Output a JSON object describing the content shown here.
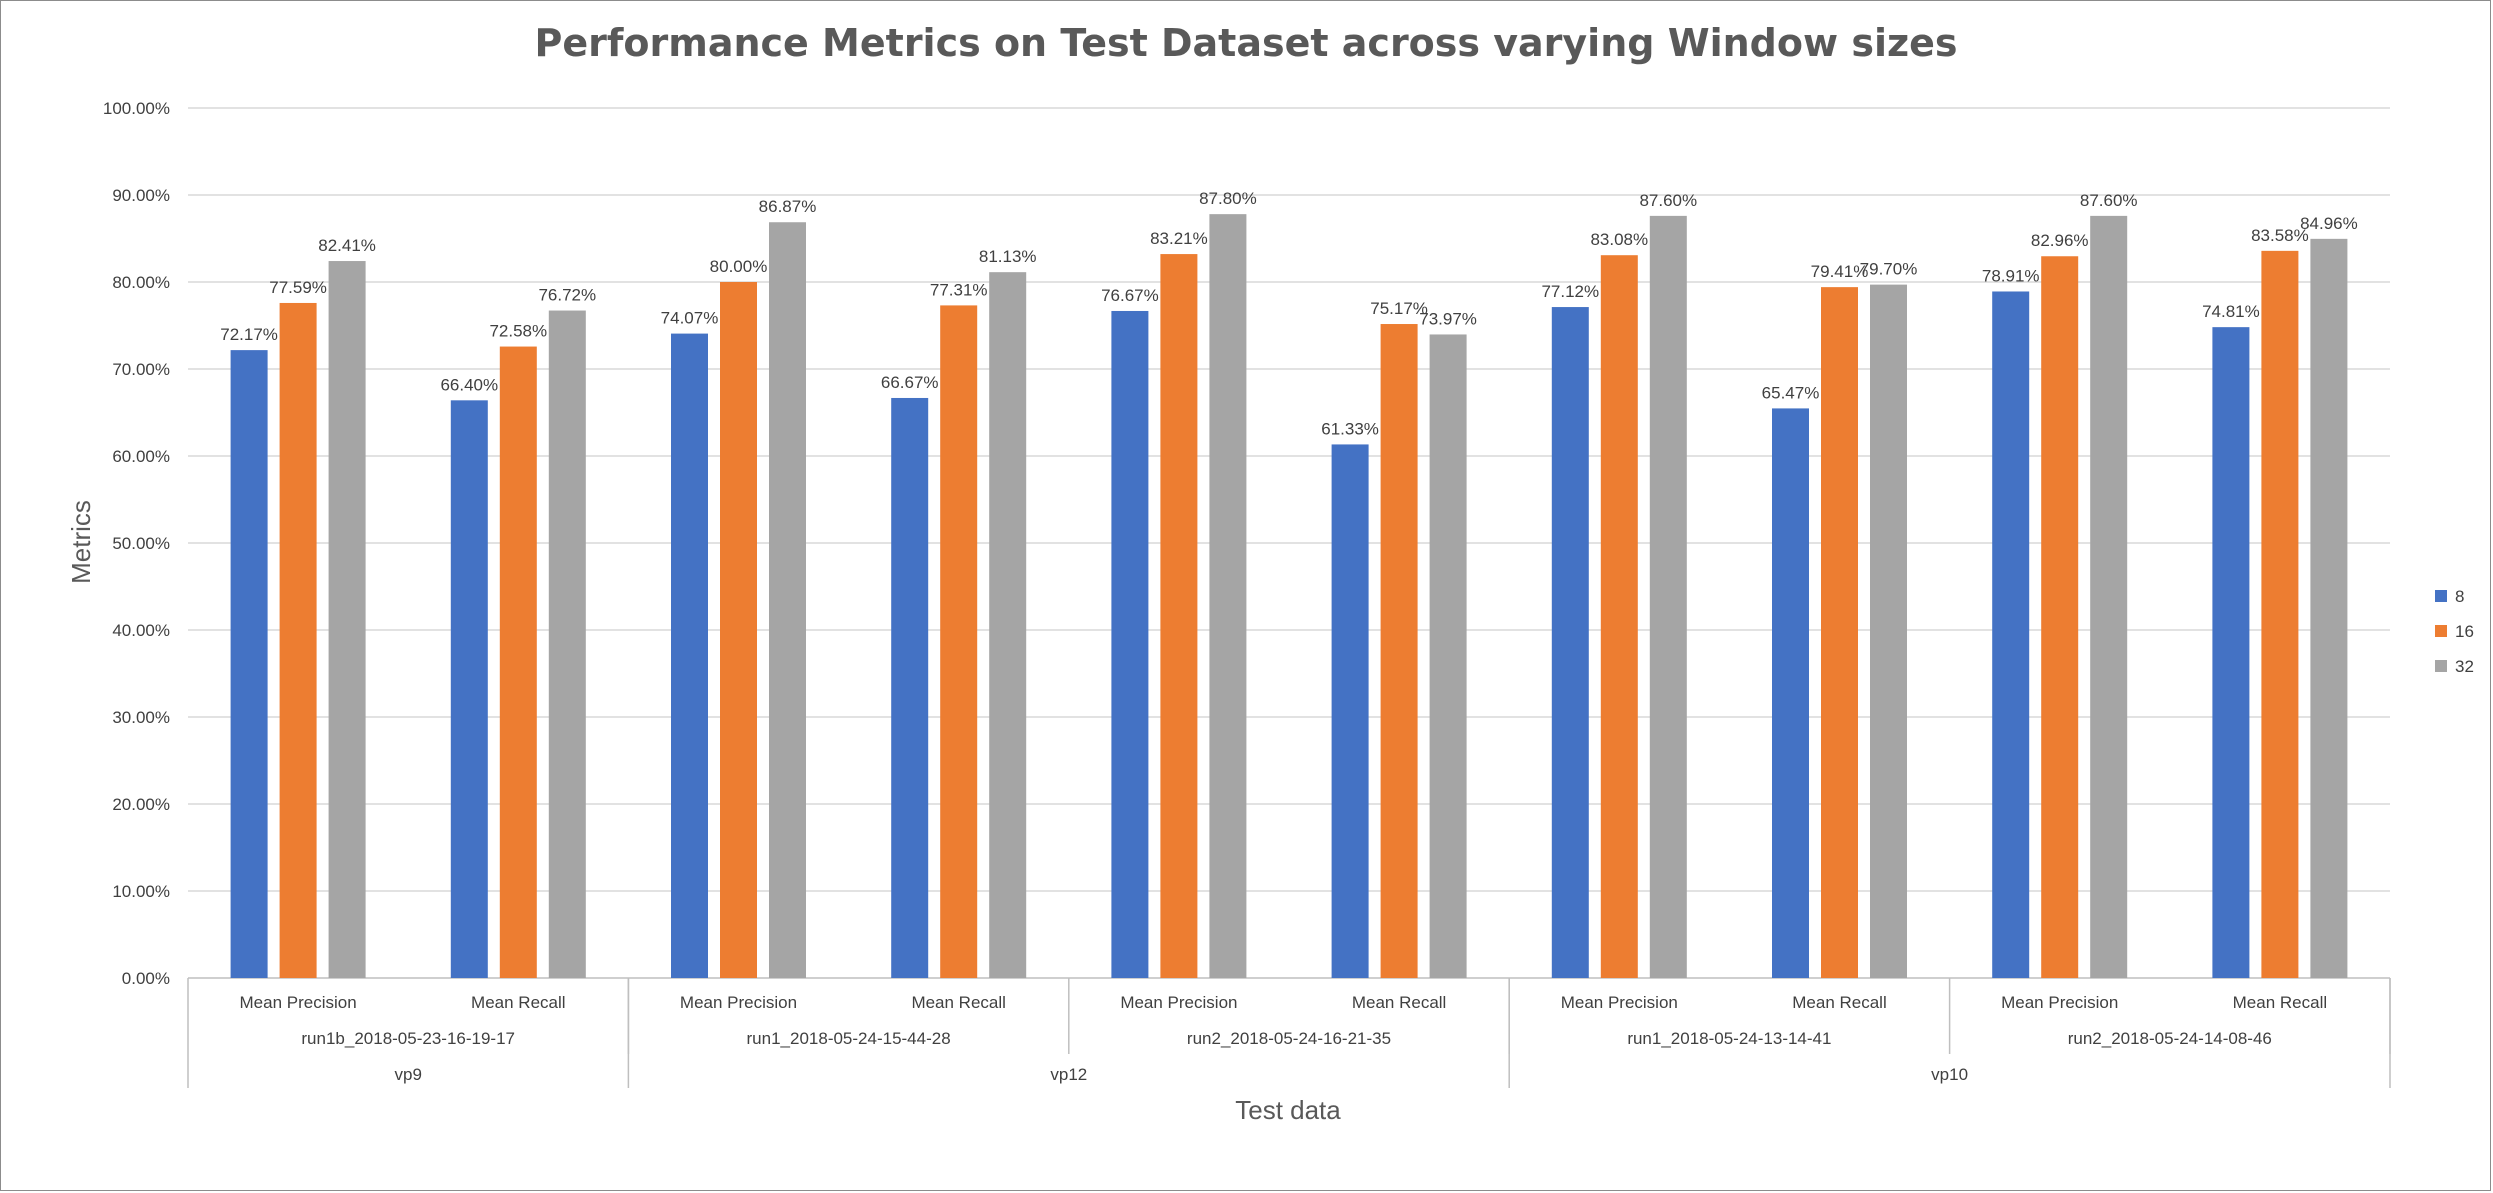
{
  "chart_data": {
    "type": "bar",
    "title": "Performance Metrics on Test Dataset across varying Window sizes",
    "xlabel": "Test data",
    "ylabel": "Metrics",
    "ylim": [
      0,
      100
    ],
    "yticks": [
      "0.00%",
      "10.00%",
      "20.00%",
      "30.00%",
      "40.00%",
      "50.00%",
      "60.00%",
      "70.00%",
      "80.00%",
      "90.00%",
      "100.00%"
    ],
    "grid": true,
    "legend_position": "right",
    "groups": [
      {
        "label": "vp9",
        "runs": [
          {
            "label": "run1b_2018-05-23-16-19-17",
            "metrics": [
              "Mean Precision",
              "Mean Recall"
            ]
          }
        ]
      },
      {
        "label": "vp12",
        "runs": [
          {
            "label": "run1_2018-05-24-15-44-28",
            "metrics": [
              "Mean Precision",
              "Mean Recall"
            ]
          },
          {
            "label": "run2_2018-05-24-16-21-35",
            "metrics": [
              "Mean Precision",
              "Mean Recall"
            ]
          }
        ]
      },
      {
        "label": "vp10",
        "runs": [
          {
            "label": "run1_2018-05-24-13-14-41",
            "metrics": [
              "Mean Precision",
              "Mean Recall"
            ]
          },
          {
            "label": "run2_2018-05-24-14-08-46",
            "metrics": [
              "Mean Precision",
              "Mean Recall"
            ]
          }
        ]
      }
    ],
    "series": [
      {
        "name": "8",
        "color": "#4472c4",
        "values": [
          72.17,
          66.4,
          74.07,
          66.67,
          76.67,
          61.33,
          77.12,
          65.47,
          78.91,
          74.81
        ],
        "labels": [
          "72.17%",
          "66.40%",
          "74.07%",
          "66.67%",
          "76.67%",
          "61.33%",
          "77.12%",
          "65.47%",
          "78.91%",
          "74.81%"
        ]
      },
      {
        "name": "16",
        "color": "#ed7d31",
        "values": [
          77.59,
          72.58,
          80.0,
          77.31,
          83.21,
          75.17,
          83.08,
          79.41,
          82.96,
          83.58
        ],
        "labels": [
          "77.59%",
          "72.58%",
          "80.00%",
          "77.31%",
          "83.21%",
          "75.17%",
          "83.08%",
          "79.41%",
          "82.96%",
          "83.58%"
        ]
      },
      {
        "name": "32",
        "color": "#a5a5a5",
        "values": [
          82.41,
          76.72,
          86.87,
          81.13,
          87.8,
          73.97,
          87.6,
          79.7,
          87.6,
          84.96
        ],
        "labels": [
          "82.41%",
          "76.72%",
          "86.87%",
          "81.13%",
          "87.80%",
          "73.97%",
          "87.60%",
          "79.70%",
          "87.60%",
          "84.96%"
        ]
      }
    ]
  }
}
